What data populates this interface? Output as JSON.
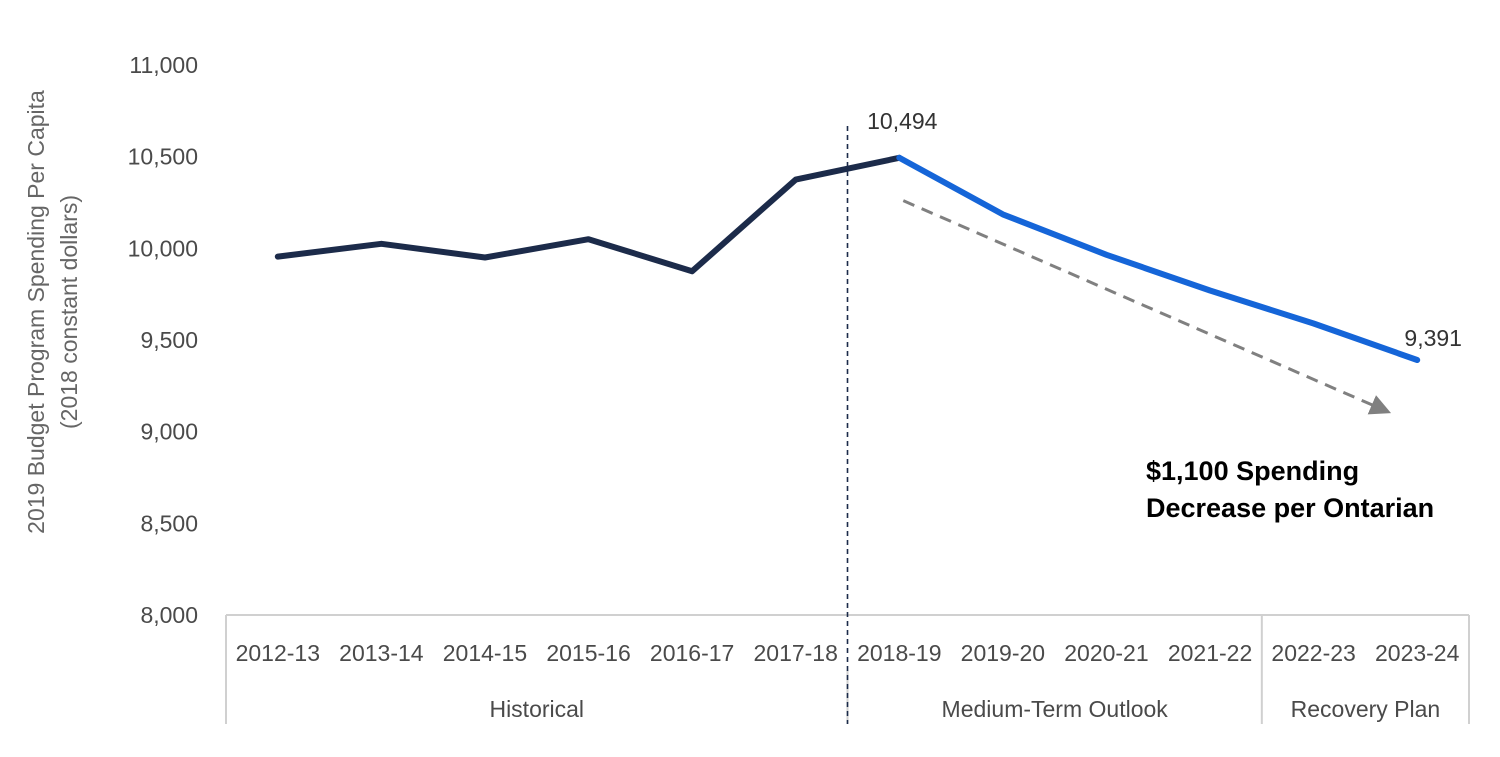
{
  "chart_data": {
    "type": "line",
    "ylabel": "2019 Budget Program Spending Per Capita",
    "ylabel_sub": "(2018 constant dollars)",
    "ylim": [
      8000,
      11000
    ],
    "yticks": [
      8000,
      8500,
      9000,
      9500,
      10000,
      10500,
      11000
    ],
    "ytick_labels": [
      "8,000",
      "8,500",
      "9,000",
      "9,500",
      "10,000",
      "10,500",
      "11,000"
    ],
    "categories": [
      "2012-13",
      "2013-14",
      "2014-15",
      "2015-16",
      "2016-17",
      "2017-18",
      "2018-19",
      "2019-20",
      "2020-21",
      "2021-22",
      "2022-23",
      "2023-24"
    ],
    "series": [
      {
        "segment": "historical",
        "color": "#1c2b4a",
        "values": [
          9955,
          10025,
          9950,
          10050,
          9875,
          10375,
          10494,
          null,
          null,
          null,
          null,
          null
        ]
      },
      {
        "segment": "projected",
        "color": "#1565d8",
        "values": [
          null,
          null,
          null,
          null,
          null,
          null,
          10494,
          10185,
          9965,
          9770,
          9590,
          9391
        ]
      }
    ],
    "groups": [
      {
        "label": "Historical",
        "from": 0,
        "to": 5
      },
      {
        "label": "Medium-Term Outlook",
        "from": 6,
        "to": 9
      },
      {
        "label": "Recovery Plan",
        "from": 10,
        "to": 11
      }
    ],
    "divider_color": "#1c2b4a",
    "data_labels": [
      {
        "index": 6,
        "text": "10,494"
      },
      {
        "index": 11,
        "text": "9,391"
      }
    ],
    "trend_arrow": {
      "color": "#808080",
      "from": {
        "x": "2018-19",
        "y": 10260
      },
      "to": {
        "x": "2023-24",
        "y": 9110
      }
    },
    "annotation": {
      "lines": [
        "$1,100 Spending",
        "Decrease per Ontarian"
      ]
    },
    "legend": "none",
    "grid": false
  }
}
